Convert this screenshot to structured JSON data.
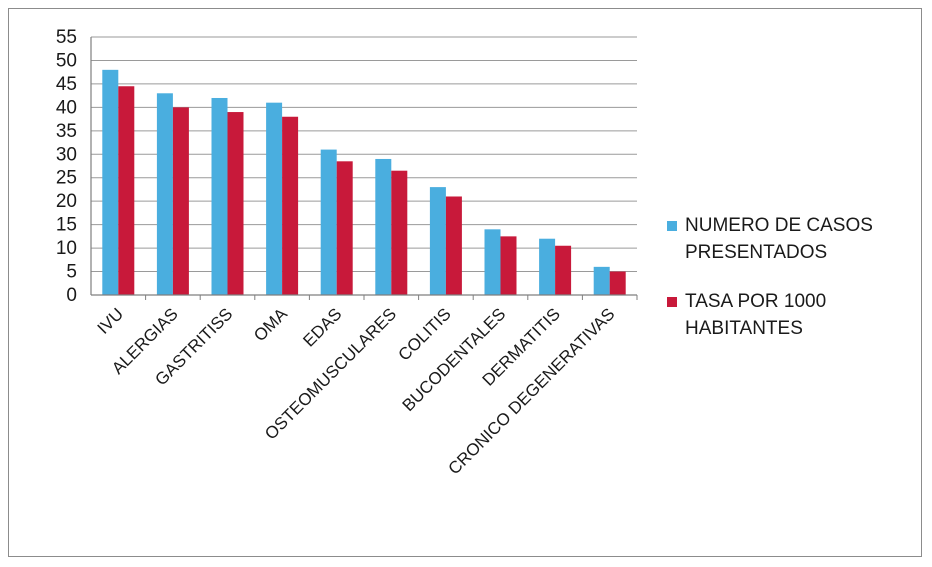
{
  "chart_data": {
    "type": "bar",
    "categories": [
      "IVU",
      "ALERGIAS",
      "GASTRITISS",
      "OMA",
      "EDAS",
      "OSTEOMUSCULARES",
      "COLITIS",
      "BUCODENTALES",
      "DERMATITIS",
      "CRONICO DEGENERATIVAS"
    ],
    "series": [
      {
        "name": "NUMERO DE CASOS PRESENTADOS",
        "name_lines": [
          "NUMERO DE CASOS",
          "PRESENTADOS"
        ],
        "color": "#4aaedf",
        "values": [
          48,
          43,
          42,
          41,
          31,
          29,
          23,
          14,
          12,
          6
        ]
      },
      {
        "name": "TASA POR 1000 HABITANTES",
        "name_lines": [
          "TASA POR 1000",
          "HABITANTES"
        ],
        "color": "#c8193a",
        "values": [
          44.5,
          40,
          39,
          38,
          28.5,
          26.5,
          21,
          12.5,
          10.5,
          5
        ]
      }
    ],
    "title": "",
    "xlabel": "",
    "ylabel": "",
    "ylim": [
      0,
      55
    ],
    "yticks": [
      0,
      5,
      10,
      15,
      20,
      25,
      30,
      35,
      40,
      45,
      50,
      55
    ],
    "grid": true,
    "legend_position": "right"
  }
}
